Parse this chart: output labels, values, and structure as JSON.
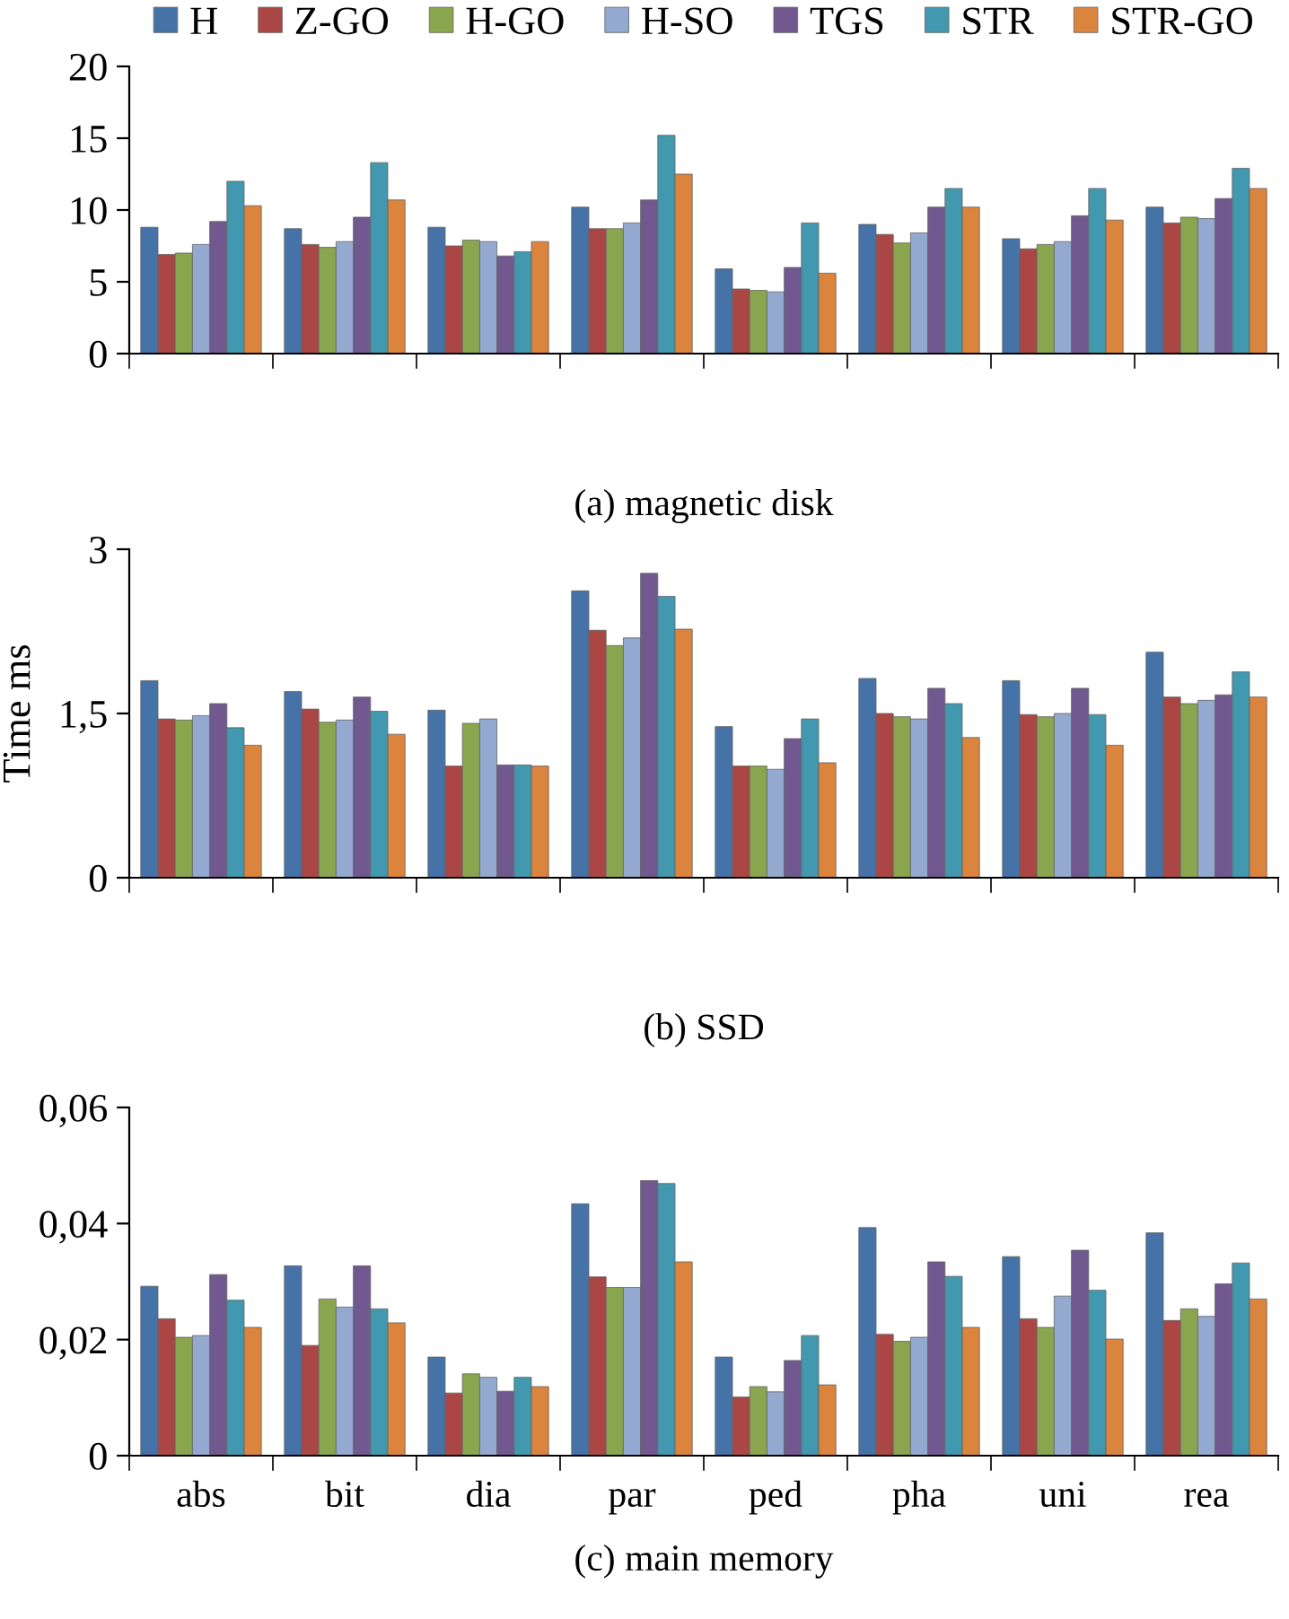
{
  "chart_data": [
    {
      "type": "bar",
      "xlabel": "(a) magnetic disk",
      "categories": [
        null,
        null,
        null,
        null,
        null,
        null,
        null,
        null
      ],
      "ylim": [
        0,
        20
      ],
      "yticks": [
        0,
        5,
        10,
        15,
        20
      ],
      "tick_labels": "y",
      "legend": "top",
      "grid": false,
      "series": [
        {
          "name": "H",
          "color": "#4572a7",
          "values": [
            8.8,
            8.7,
            8.8,
            10.2,
            5.9,
            9.0,
            8.0,
            10.2
          ]
        },
        {
          "name": "Z-GO",
          "color": "#aa4643",
          "values": [
            6.9,
            7.6,
            7.5,
            8.7,
            4.5,
            8.3,
            7.3,
            9.1
          ]
        },
        {
          "name": "H-GO",
          "color": "#89a54e",
          "values": [
            7.0,
            7.4,
            7.9,
            8.7,
            4.4,
            7.7,
            7.6,
            9.5
          ]
        },
        {
          "name": "H-SO",
          "color": "#93a9cf",
          "values": [
            7.6,
            7.8,
            7.8,
            9.1,
            4.3,
            8.4,
            7.8,
            9.4
          ]
        },
        {
          "name": "TGS",
          "color": "#71588f",
          "values": [
            9.2,
            9.5,
            6.8,
            10.7,
            6.0,
            10.2,
            9.6,
            10.8
          ]
        },
        {
          "name": "STR",
          "color": "#4198af",
          "values": [
            12.0,
            13.3,
            7.1,
            15.2,
            9.1,
            11.5,
            11.5,
            12.9
          ]
        },
        {
          "name": "STR-GO",
          "color": "#db843d",
          "values": [
            10.3,
            10.7,
            7.8,
            12.5,
            5.6,
            10.2,
            9.3,
            11.5
          ]
        }
      ]
    },
    {
      "type": "bar",
      "xlabel": "(b) SSD",
      "ylabel": "Time ms",
      "categories": [
        null,
        null,
        null,
        null,
        null,
        null,
        null,
        null
      ],
      "ylim": [
        0,
        3
      ],
      "yticks": [
        0,
        {
          "value": 1.5,
          "label": "1,5"
        },
        3
      ],
      "tick_labels": "y",
      "grid": false,
      "series": [
        {
          "color": "#4572a7",
          "values": [
            1.8,
            1.7,
            1.53,
            2.62,
            1.38,
            1.82,
            1.8,
            2.06
          ]
        },
        {
          "color": "#aa4643",
          "values": [
            1.45,
            1.54,
            1.02,
            2.26,
            1.02,
            1.5,
            1.49,
            1.65
          ]
        },
        {
          "color": "#89a54e",
          "values": [
            1.44,
            1.42,
            1.41,
            2.12,
            1.02,
            1.47,
            1.47,
            1.59
          ]
        },
        {
          "color": "#93a9cf",
          "values": [
            1.48,
            1.44,
            1.45,
            2.19,
            0.99,
            1.45,
            1.5,
            1.62
          ]
        },
        {
          "color": "#71588f",
          "values": [
            1.59,
            1.65,
            1.03,
            2.78,
            1.27,
            1.73,
            1.73,
            1.67
          ]
        },
        {
          "color": "#4198af",
          "values": [
            1.37,
            1.52,
            1.03,
            2.57,
            1.45,
            1.59,
            1.49,
            1.88
          ]
        },
        {
          "color": "#db843d",
          "values": [
            1.21,
            1.31,
            1.02,
            2.27,
            1.05,
            1.28,
            1.21,
            1.65
          ]
        }
      ]
    },
    {
      "type": "bar",
      "xlabel": "(c) main memory",
      "categories": [
        "abs",
        "bit",
        "dia",
        "par",
        "ped",
        "pha",
        "uni",
        "rea"
      ],
      "ylim": [
        0,
        0.06
      ],
      "yticks": [
        0,
        {
          "value": 0.02,
          "label": "0,02"
        },
        {
          "value": 0.04,
          "label": "0,04"
        },
        {
          "value": 0.06,
          "label": "0,06"
        }
      ],
      "grid": false,
      "series": [
        {
          "color": "#4572a7",
          "values": [
            0.0292,
            0.0327,
            0.017,
            0.0434,
            0.017,
            0.0393,
            0.0343,
            0.0384
          ]
        },
        {
          "color": "#aa4643",
          "values": [
            0.0236,
            0.019,
            0.0108,
            0.0308,
            0.0101,
            0.0209,
            0.0236,
            0.0233
          ]
        },
        {
          "color": "#89a54e",
          "values": [
            0.0204,
            0.027,
            0.0141,
            0.029,
            0.0119,
            0.0197,
            0.0221,
            0.0253
          ]
        },
        {
          "color": "#93a9cf",
          "values": [
            0.0207,
            0.0256,
            0.0135,
            0.029,
            0.011,
            0.0204,
            0.0275,
            0.024
          ]
        },
        {
          "color": "#71588f",
          "values": [
            0.0312,
            0.0327,
            0.0111,
            0.0474,
            0.0164,
            0.0334,
            0.0354,
            0.0296
          ]
        },
        {
          "color": "#4198af",
          "values": [
            0.0268,
            0.0253,
            0.0135,
            0.0469,
            0.0207,
            0.0309,
            0.0285,
            0.0332
          ]
        },
        {
          "color": "#db843d",
          "values": [
            0.0221,
            0.0229,
            0.0119,
            0.0334,
            0.0122,
            0.0221,
            0.0201,
            0.027
          ]
        }
      ]
    }
  ]
}
